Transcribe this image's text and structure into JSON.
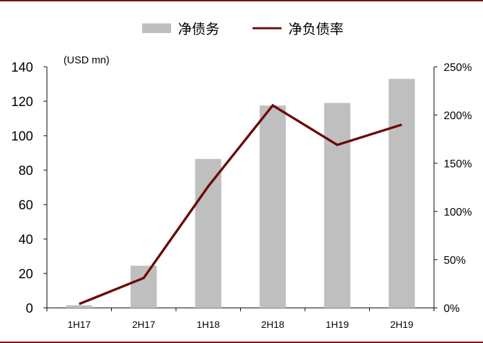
{
  "chart_data": {
    "type": "bar",
    "unit_label": "(USD mn)",
    "categories": [
      "1H17",
      "2H17",
      "1H18",
      "2H18",
      "1H19",
      "2H19"
    ],
    "series": [
      {
        "name": "净债务",
        "type": "bar",
        "axis": "left",
        "color": "#bfbfbf",
        "values": [
          1.5,
          24.5,
          86.5,
          117.5,
          119,
          133
        ]
      },
      {
        "name": "净负债率",
        "type": "line",
        "axis": "right",
        "color": "#6b0b0b",
        "values": [
          4,
          31,
          126,
          210,
          169,
          190
        ]
      }
    ],
    "y_left": {
      "min": 0,
      "max": 140,
      "ticks": [
        "0",
        "20",
        "40",
        "60",
        "80",
        "100",
        "120",
        "140"
      ]
    },
    "y_right": {
      "min": 0,
      "max": 250,
      "ticks": [
        "0%",
        "50%",
        "100%",
        "150%",
        "200%",
        "250%"
      ]
    },
    "legend_position": "top-center",
    "grid": false
  },
  "colors": {
    "frame_rule": "#7a1010",
    "axis": "#000000"
  }
}
